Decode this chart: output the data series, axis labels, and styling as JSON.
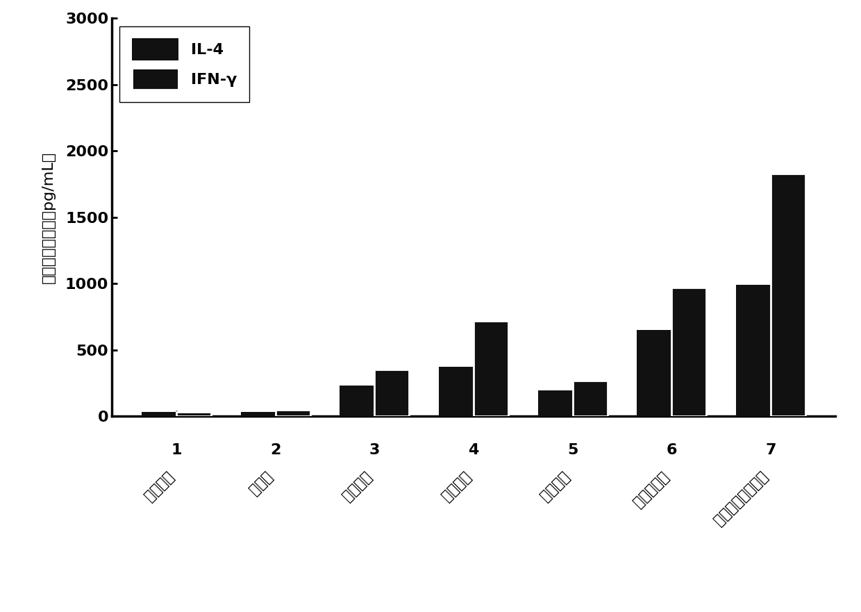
{
  "groups": [
    1,
    2,
    3,
    4,
    5,
    6,
    7
  ],
  "il4_values": [
    30,
    30,
    230,
    370,
    195,
    650,
    990
  ],
  "ifn_values": [
    30,
    50,
    350,
    720,
    270,
    970,
    1830
  ],
  "bar_color_il4": "#111111",
  "bar_color_ifn": "#111111",
  "legend_labels": [
    "IL-4",
    "IFN-γ"
  ],
  "ylabel_chars": [
    "细",
    "胞",
    "因",
    "子",
    "分",
    "泌",
    "量",
    "（",
    "p",
    "g",
    "/",
    "m",
    "L",
    "）"
  ],
  "ylim": [
    0,
    3000
  ],
  "yticks": [
    0,
    500,
    1000,
    1500,
    2000,
    2500,
    3000
  ],
  "xtick_labels": [
    "空白对照",
    "卡拉胶",
    "壳莆多糖",
    "香菇多糖",
    "山药多糖",
    "综合硒多糖",
    "依诺蒙糖阳性对照"
  ],
  "bar_width": 0.35,
  "figsize": [
    12.4,
    8.81
  ],
  "dpi": 100,
  "background_color": "#ffffff",
  "axis_fontsize": 16,
  "tick_fontsize": 16,
  "legend_fontsize": 16,
  "xtick_label_fontsize": 15
}
